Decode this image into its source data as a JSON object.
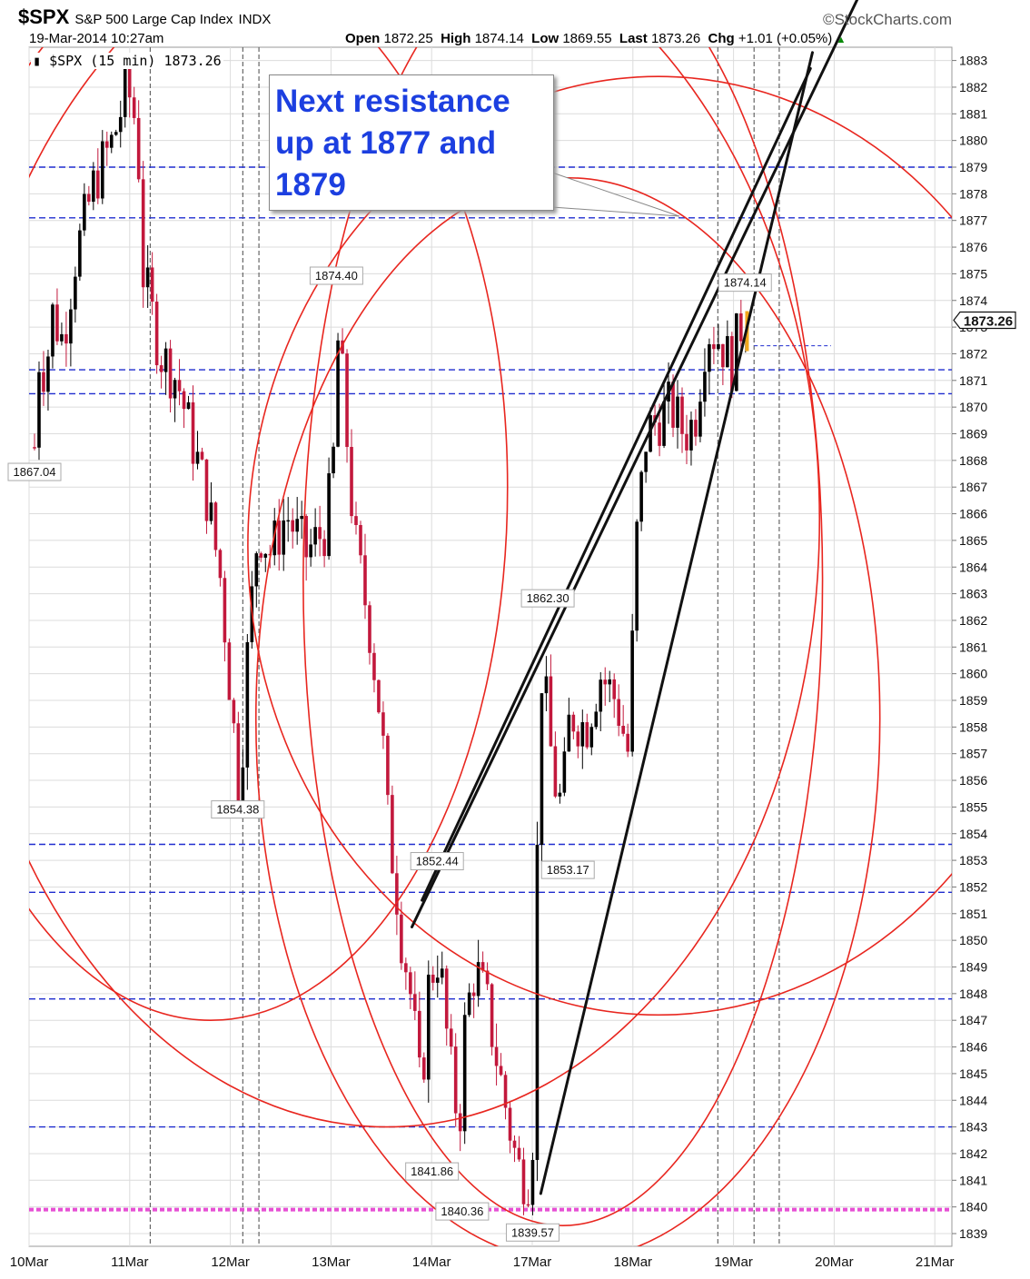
{
  "header": {
    "symbol": "$SPX",
    "name": "S&P 500 Large Cap Index",
    "exchange": "INDX",
    "brand": "©StockCharts.com",
    "datetime": "19-Mar-2014 10:27am",
    "open_label": "Open",
    "open": "1872.25",
    "high_label": "High",
    "high": "1874.14",
    "low_label": "Low",
    "low": "1869.55",
    "last_label": "Last",
    "last": "1873.26",
    "chg_label": "Chg",
    "chg": "+1.01 (+0.05%)"
  },
  "legend": {
    "text": "$SPX (15 min) 1873.26"
  },
  "callout": {
    "text": "Next resistance up at 1877 and 1879"
  },
  "colors": {
    "up": "#000000",
    "down": "#c2183c",
    "circle": "#e8261f",
    "support": "#1f2ccf",
    "low_line": "#e64fd4",
    "grid": "#dcdcdc"
  },
  "chart_data": {
    "type": "candlestick",
    "interval": "15 min",
    "x_labels": [
      "10Mar",
      "11Mar",
      "12Mar",
      "13Mar",
      "14Mar",
      "17Mar",
      "18Mar",
      "19Mar",
      "20Mar",
      "21Mar"
    ],
    "ylim": [
      1839,
      1883
    ],
    "last_value_label": "1873.26",
    "horizontal_levels": [
      1879.0,
      1877.1,
      1871.4,
      1870.5,
      1853.6,
      1851.8,
      1847.8,
      1843.0
    ],
    "low_level": 1839.9,
    "price_path": [
      [
        0.0,
        1868.5
      ],
      [
        0.06,
        1873.0
      ],
      [
        0.1,
        1871.0
      ],
      [
        0.18,
        1873.5
      ],
      [
        0.28,
        1872.5
      ],
      [
        0.4,
        1875.5
      ],
      [
        0.6,
        1878.5
      ],
      [
        0.78,
        1880.0
      ],
      [
        0.92,
        1882.0
      ],
      [
        1.02,
        1880.5
      ],
      [
        1.08,
        1875.0
      ],
      [
        1.25,
        1872.0
      ],
      [
        1.42,
        1871.0
      ],
      [
        1.55,
        1869.0
      ],
      [
        1.72,
        1866.5
      ],
      [
        1.85,
        1863.5
      ],
      [
        2.0,
        1857.0
      ],
      [
        2.04,
        1855.5
      ],
      [
        2.12,
        1861.0
      ],
      [
        2.22,
        1865.5
      ],
      [
        2.35,
        1864.5
      ],
      [
        2.5,
        1866.0
      ],
      [
        2.7,
        1864.5
      ],
      [
        2.9,
        1865.5
      ],
      [
        2.98,
        1868.5
      ],
      [
        3.02,
        1873.0
      ],
      [
        3.08,
        1870.0
      ],
      [
        3.18,
        1865.0
      ],
      [
        3.32,
        1862.0
      ],
      [
        3.45,
        1858.0
      ],
      [
        3.52,
        1854.0
      ],
      [
        3.58,
        1852.5
      ],
      [
        3.65,
        1850.0
      ],
      [
        3.72,
        1848.5
      ],
      [
        3.78,
        1846.5
      ],
      [
        3.84,
        1844.0
      ],
      [
        3.92,
        1848.5
      ],
      [
        4.02,
        1849.5
      ],
      [
        4.12,
        1845.5
      ],
      [
        4.22,
        1843.0
      ],
      [
        4.28,
        1847.0
      ],
      [
        4.38,
        1849.0
      ],
      [
        4.5,
        1847.5
      ],
      [
        4.62,
        1845.0
      ],
      [
        4.72,
        1843.0
      ],
      [
        4.8,
        1841.5
      ],
      [
        4.9,
        1841.0
      ],
      [
        4.96,
        1843.0
      ],
      [
        5.02,
        1860.5
      ],
      [
        5.08,
        1859.0
      ],
      [
        5.16,
        1856.0
      ],
      [
        5.24,
        1855.0
      ],
      [
        5.32,
        1858.5
      ],
      [
        5.48,
        1858.0
      ],
      [
        5.62,
        1860.0
      ],
      [
        5.78,
        1859.0
      ],
      [
        5.9,
        1857.0
      ],
      [
        5.98,
        1865.0
      ],
      [
        6.08,
        1869.0
      ],
      [
        6.18,
        1869.5
      ],
      [
        6.32,
        1870.0
      ],
      [
        6.46,
        1869.0
      ],
      [
        6.56,
        1869.5
      ],
      [
        6.68,
        1873.0
      ],
      [
        6.82,
        1872.5
      ],
      [
        6.92,
        1871.5
      ],
      [
        6.98,
        1872.5
      ],
      [
        7.05,
        1873.5
      ],
      [
        7.08,
        1873.26
      ]
    ],
    "peak_labels": [
      {
        "x": 0.0,
        "y": 1867.04,
        "text": "1867.04"
      },
      {
        "x": 2.02,
        "y": 1854.38,
        "text": "1854.38"
      },
      {
        "x": 3.0,
        "y": 1874.4,
        "text": "1874.40"
      },
      {
        "x": 4.0,
        "y": 1852.44,
        "text": "1852.44"
      },
      {
        "x": 3.95,
        "y": 1841.86,
        "text": "1841.86"
      },
      {
        "x": 4.25,
        "y": 1840.36,
        "text": "1840.36"
      },
      {
        "x": 4.95,
        "y": 1839.57,
        "text": "1839.57"
      },
      {
        "x": 5.1,
        "y": 1862.3,
        "text": "1862.30"
      },
      {
        "x": 5.3,
        "y": 1853.17,
        "text": "1853.17"
      },
      {
        "x": 7.06,
        "y": 1874.14,
        "text": "1874.14"
      }
    ],
    "trend_lines": [
      [
        [
          3.75,
          1850.5
        ],
        [
          8.52,
          1888.0
        ]
      ],
      [
        [
          5.03,
          1840.5
        ],
        [
          7.73,
          1883.3
        ]
      ],
      [
        [
          3.85,
          1851.5
        ],
        [
          7.71,
          1882.7
        ]
      ]
    ],
    "circles": [
      {
        "cx": 1.75,
        "cy": 1867.0,
        "rx": 2.95,
        "ry": 20.0
      },
      {
        "cx": 3.5,
        "cy": 1865.8,
        "rx": 4.3,
        "ry": 22.8
      },
      {
        "cx": 5.25,
        "cy": 1863.5,
        "rx": 2.58,
        "ry": 24.2
      },
      {
        "cx": 6.2,
        "cy": 1864.8,
        "rx": 4.08,
        "ry": 17.6
      },
      {
        "cx": 5.3,
        "cy": 1858.3,
        "rx": 3.1,
        "ry": 20.3
      }
    ],
    "vertical_markers": [
      1.15,
      2.07,
      2.23,
      6.79,
      7.15,
      7.4
    ]
  }
}
